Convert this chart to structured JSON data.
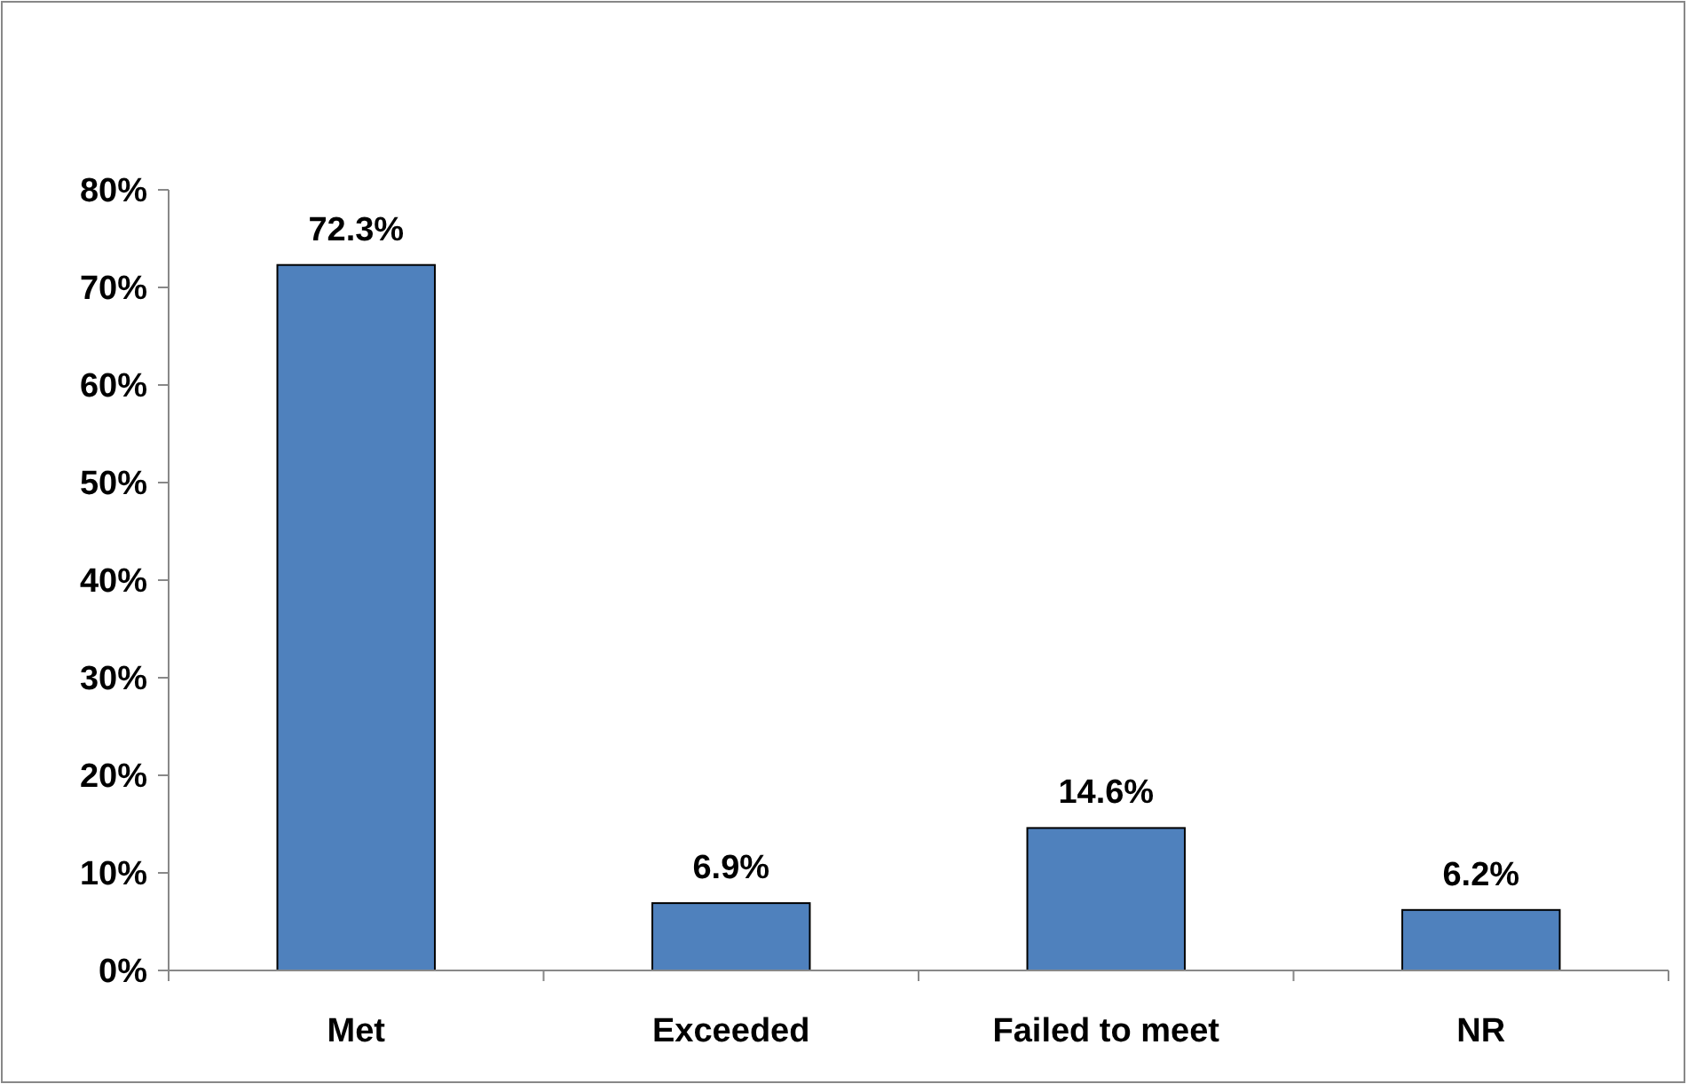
{
  "chart_data": {
    "type": "bar",
    "categories": [
      "Met",
      "Exceeded",
      "Failed to meet",
      "NR"
    ],
    "values": [
      72.3,
      6.9,
      14.6,
      6.2
    ],
    "value_labels": [
      "72.3%",
      "6.9%",
      "14.6%",
      "6.2%"
    ],
    "color": "#4f81bd",
    "ylim": [
      0,
      80
    ],
    "yticks": [
      {
        "value": 0,
        "label": "0%"
      },
      {
        "value": 10,
        "label": "10%"
      },
      {
        "value": 20,
        "label": "20%"
      },
      {
        "value": 30,
        "label": "30%"
      },
      {
        "value": 40,
        "label": "40%"
      },
      {
        "value": 50,
        "label": "50%"
      },
      {
        "value": 60,
        "label": "60%"
      },
      {
        "value": 70,
        "label": "70%"
      },
      {
        "value": 80,
        "label": "80%"
      }
    ],
    "grid": false
  }
}
